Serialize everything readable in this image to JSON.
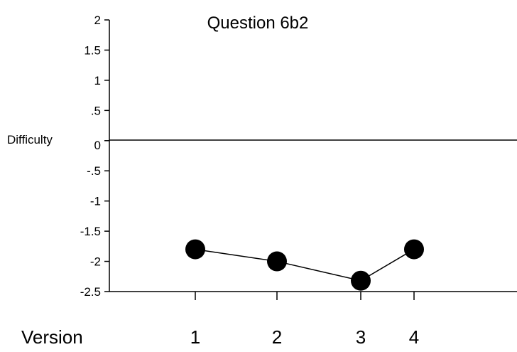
{
  "chart_data": {
    "type": "line",
    "title": "Question 6b2",
    "ylabel": "Difficulty",
    "xlabel": "Version",
    "x": [
      1,
      2,
      3,
      4
    ],
    "x_tick_labels": [
      "1",
      "2",
      "3",
      "4"
    ],
    "y_tick_labels": [
      "2",
      "1.5",
      "1",
      ".5",
      "0",
      "-.5",
      "-1",
      "-1.5",
      "-2",
      "-2.5"
    ],
    "y_ticks": [
      2,
      1.5,
      1,
      0.5,
      0,
      -0.5,
      -1,
      -1.5,
      -2,
      -2.5
    ],
    "ylim": [
      -2.5,
      2
    ],
    "series": [
      {
        "values": [
          -1.8,
          -2.0,
          -2.32,
          -1.8
        ]
      }
    ],
    "zero_line": true,
    "grid": false,
    "marker_color": "#000000",
    "line_color": "#000000"
  }
}
